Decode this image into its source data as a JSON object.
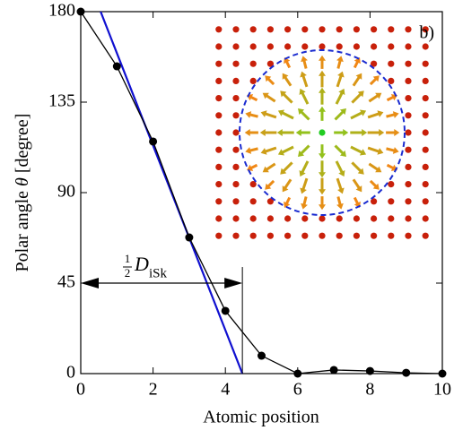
{
  "chart_data": {
    "type": "line",
    "xlabel": "Atomic position",
    "ylabel_parts": [
      "Polar angle ",
      "θ",
      " [degree]"
    ],
    "panel_label": "b)",
    "x": [
      0,
      1,
      2,
      3,
      4,
      5,
      6,
      7,
      8,
      9,
      10
    ],
    "series": [
      {
        "color": "#000000",
        "x": [
          0,
          1,
          2,
          3,
          4,
          5,
          6,
          7,
          8,
          9,
          10
        ],
        "values": [
          180,
          152.8,
          115.4,
          67.7,
          31.2,
          8.9,
          0,
          1.8,
          1.3,
          0.4,
          0
        ],
        "markers": true
      },
      {
        "color": "#1010d0",
        "x": [
          0.55,
          4.47
        ],
        "values": [
          180,
          0
        ],
        "markers": false
      }
    ],
    "annotation": {
      "num": "1",
      "den": "2",
      "symbol": "D",
      "subscript": "iSk",
      "x": 4.47,
      "arrow_y": 45,
      "line_top": 53
    },
    "xlim": [
      0,
      10
    ],
    "xticks": [
      0,
      2,
      4,
      6,
      8,
      10
    ],
    "ylim": [
      0,
      180
    ],
    "yticks": [
      0,
      45,
      90,
      135,
      180
    ]
  }
}
